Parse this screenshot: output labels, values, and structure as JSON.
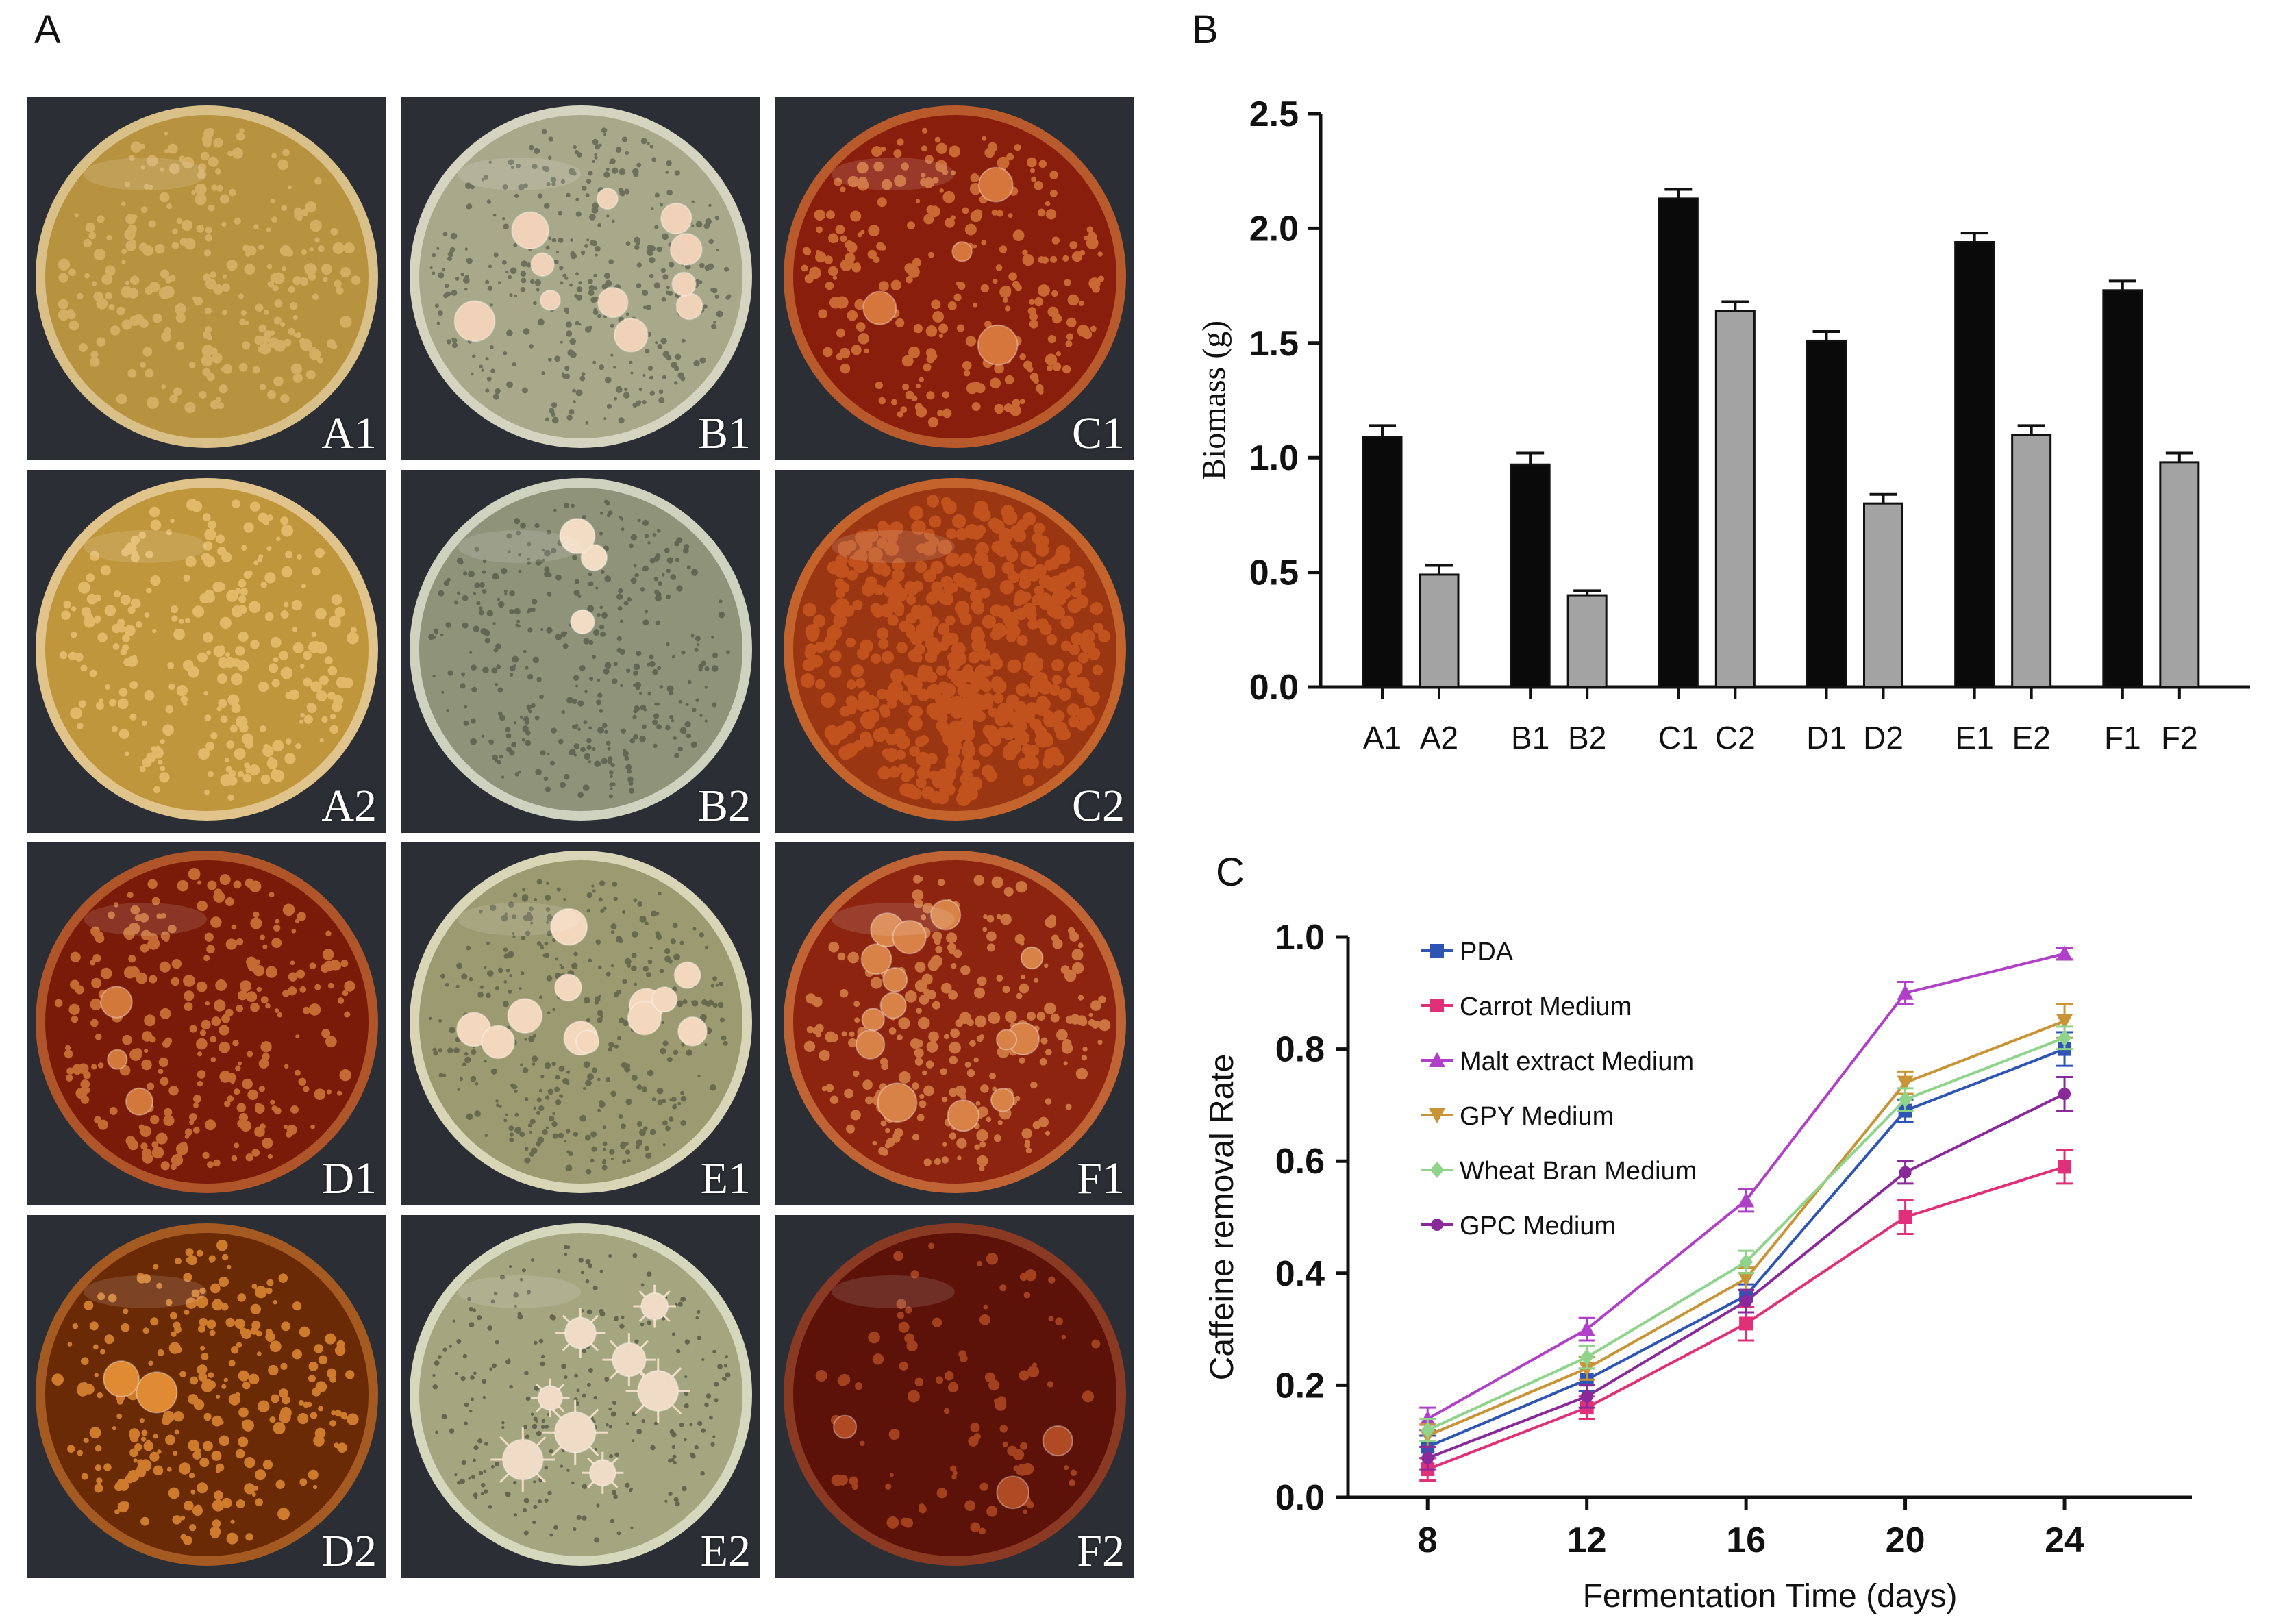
{
  "panels": {
    "a": {
      "letter": "A",
      "plates": [
        {
          "label": "A1",
          "medium": "#b8933f",
          "rim": "#d9c089",
          "colony": "#d8b36a",
          "spots": "fine",
          "big": 0
        },
        {
          "label": "B1",
          "medium": "#a8a98a",
          "rim": "#d4d4c0",
          "colony": "#f0d2b8",
          "spots": "speckle",
          "big": 11
        },
        {
          "label": "C1",
          "medium": "#8a1e0c",
          "rim": "#b85a2c",
          "colony": "#d6763c",
          "spots": "fine",
          "big": 4
        },
        {
          "label": "A2",
          "medium": "#c0963c",
          "rim": "#e0c48c",
          "colony": "#e8c070",
          "spots": "fine",
          "big": 0
        },
        {
          "label": "B2",
          "medium": "#8f937a",
          "rim": "#cfd2bf",
          "colony": "#f2dcc4",
          "spots": "speckle",
          "big": 3
        },
        {
          "label": "C2",
          "medium": "#9a3612",
          "rim": "#c4642c",
          "colony": "#c8581f",
          "spots": "dense",
          "big": 0
        },
        {
          "label": "D1",
          "medium": "#7a1a08",
          "rim": "#b0542a",
          "colony": "#d2783a",
          "spots": "fine",
          "big": 3
        },
        {
          "label": "E1",
          "medium": "#9c9a70",
          "rim": "#d8d6b6",
          "colony": "#f4d8be",
          "spots": "speckle",
          "big": 13
        },
        {
          "label": "F1",
          "medium": "#8c2410",
          "rim": "#c06436",
          "colony": "#d88248",
          "spots": "fine",
          "big": 14
        },
        {
          "label": "D2",
          "medium": "#6a2a06",
          "rim": "#a45a20",
          "colony": "#e08a34",
          "spots": "fine",
          "big": 2
        },
        {
          "label": "E2",
          "medium": "#a4a680",
          "rim": "#d6d8be",
          "colony": "#f0dcc6",
          "spots": "star",
          "big": 8
        },
        {
          "label": "F2",
          "medium": "#5c1208",
          "rim": "#8a3a22",
          "colony": "#b04a24",
          "spots": "sparse",
          "big": 3
        }
      ]
    },
    "b": {
      "letter": "B"
    },
    "c": {
      "letter": "C"
    }
  },
  "chart_data": [
    {
      "id": "B",
      "type": "bar",
      "ylabel": "Biomass (g)",
      "xlabel": "",
      "ylim": [
        0,
        2.5
      ],
      "yticks": [
        "0.0",
        "0.5",
        "1.0",
        "1.5",
        "2.0",
        "2.5"
      ],
      "categories": [
        "A1",
        "A2",
        "B1",
        "B2",
        "C1",
        "C2",
        "D1",
        "D2",
        "E1",
        "E2",
        "F1",
        "F2"
      ],
      "values": [
        1.09,
        0.49,
        0.97,
        0.4,
        2.13,
        1.64,
        1.51,
        0.8,
        1.94,
        1.1,
        1.73,
        0.98
      ],
      "errors": [
        0.05,
        0.04,
        0.05,
        0.02,
        0.04,
        0.04,
        0.04,
        0.04,
        0.04,
        0.04,
        0.04,
        0.04
      ],
      "bar_colors": [
        "#0a0a0a",
        "#a3a3a3"
      ],
      "grid": false,
      "legend": "none"
    },
    {
      "id": "C",
      "type": "line",
      "ylabel": "Caffeine removal Rate",
      "xlabel": "Fermentation Time (days)",
      "x": [
        8,
        12,
        16,
        20,
        24
      ],
      "xticks": [
        "8",
        "12",
        "16",
        "20",
        "24"
      ],
      "ylim": [
        0,
        1.0
      ],
      "yticks": [
        "0.0",
        "0.2",
        "0.4",
        "0.6",
        "0.8",
        "1.0"
      ],
      "grid": false,
      "legend": "top-left",
      "series": [
        {
          "name": "PDA",
          "color": "#2f55b4",
          "marker": "square",
          "values": [
            0.09,
            0.21,
            0.36,
            0.69,
            0.8
          ],
          "errors": [
            0.02,
            0.02,
            0.02,
            0.02,
            0.03
          ]
        },
        {
          "name": "Carrot Medium",
          "color": "#e0307a",
          "marker": "square",
          "values": [
            0.05,
            0.16,
            0.31,
            0.5,
            0.59
          ],
          "errors": [
            0.02,
            0.02,
            0.03,
            0.03,
            0.03
          ]
        },
        {
          "name": "Malt extract Medium",
          "color": "#b040c8",
          "marker": "triangle",
          "values": [
            0.14,
            0.3,
            0.53,
            0.9,
            0.97
          ],
          "errors": [
            0.02,
            0.02,
            0.02,
            0.02,
            0.01
          ]
        },
        {
          "name": "GPY Medium",
          "color": "#c89436",
          "marker": "triangle-down",
          "values": [
            0.11,
            0.23,
            0.39,
            0.74,
            0.85
          ],
          "errors": [
            0.02,
            0.02,
            0.02,
            0.02,
            0.03
          ]
        },
        {
          "name": "Wheat Bran Medium",
          "color": "#8fd48a",
          "marker": "diamond",
          "values": [
            0.12,
            0.25,
            0.42,
            0.71,
            0.82
          ],
          "errors": [
            0.02,
            0.02,
            0.02,
            0.02,
            0.02
          ]
        },
        {
          "name": "GPC Medium",
          "color": "#8a2a9a",
          "marker": "circle",
          "values": [
            0.07,
            0.18,
            0.35,
            0.58,
            0.72
          ],
          "errors": [
            0.02,
            0.02,
            0.02,
            0.02,
            0.03
          ]
        }
      ]
    }
  ]
}
